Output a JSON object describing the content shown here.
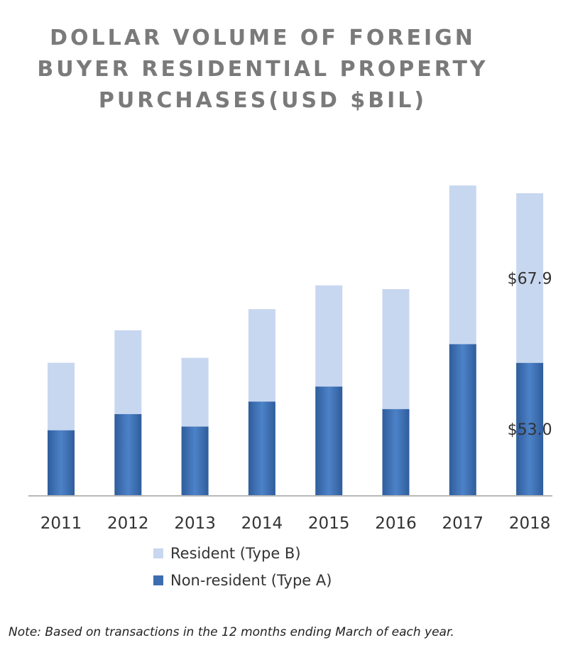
{
  "chart_data": {
    "type": "bar",
    "stacked": true,
    "title_lines": [
      "DOLLAR VOLUME OF FOREIGN",
      "BUYER RESIDENTIAL PROPERTY",
      "PURCHASES(USD $BIL)"
    ],
    "categories": [
      "2011",
      "2012",
      "2013",
      "2014",
      "2015",
      "2016",
      "2017",
      "2018"
    ],
    "series": [
      {
        "name": "Non-resident (Type A)",
        "color": "#3d6db0",
        "values": [
          26.0,
          32.5,
          27.5,
          37.5,
          43.5,
          34.5,
          60.5,
          53.0
        ]
      },
      {
        "name": "Resident (Type B)",
        "color": "#c8d7f0",
        "values": [
          27.0,
          33.5,
          27.5,
          37.0,
          40.5,
          48.0,
          63.5,
          67.9
        ]
      }
    ],
    "data_labels": [
      {
        "category": "2018",
        "series": "Resident (Type B)",
        "text": "$67.9"
      },
      {
        "category": "2018",
        "series": "Non-resident (Type A)",
        "text": "$53.0"
      }
    ],
    "ylim": [
      0,
      130
    ],
    "grid": false,
    "legend_position": "bottom",
    "legend_order": [
      "Resident (Type B)",
      "Non-resident (Type A)"
    ]
  },
  "note": "Note: Based on transactions in the 12 months ending March of each year."
}
